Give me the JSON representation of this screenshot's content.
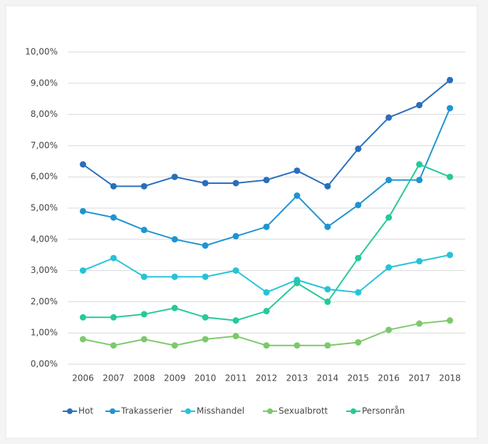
{
  "chart_data": {
    "type": "line",
    "categories": [
      "2006",
      "2007",
      "2008",
      "2009",
      "2010",
      "2011",
      "2012",
      "2013",
      "2014",
      "2015",
      "2016",
      "2017",
      "2018"
    ],
    "series": [
      {
        "name": "Hot",
        "color": "#2a6ebb",
        "values": [
          6.4,
          5.7,
          5.7,
          6.0,
          5.8,
          5.8,
          5.9,
          6.2,
          5.7,
          6.9,
          7.9,
          8.3,
          9.1
        ]
      },
      {
        "name": "Trakasserier",
        "color": "#1e94d2",
        "values": [
          4.9,
          4.7,
          4.3,
          4.0,
          3.8,
          4.1,
          4.4,
          5.4,
          4.4,
          5.1,
          5.9,
          5.9,
          8.2
        ]
      },
      {
        "name": "Misshandel",
        "color": "#25c3d9",
        "values": [
          3.0,
          3.4,
          2.8,
          2.8,
          2.8,
          3.0,
          2.3,
          2.7,
          2.4,
          2.3,
          3.1,
          3.3,
          3.5
        ]
      },
      {
        "name": "Sexualbrott",
        "color": "#7cc96b",
        "values": [
          0.8,
          0.6,
          0.8,
          0.6,
          0.8,
          0.9,
          0.6,
          0.6,
          0.6,
          0.7,
          1.1,
          1.3,
          1.4
        ]
      },
      {
        "name": "Personrån",
        "color": "#25c99b",
        "values": [
          1.5,
          1.5,
          1.6,
          1.8,
          1.5,
          1.4,
          1.7,
          2.6,
          2.0,
          3.4,
          4.7,
          6.4,
          6.0
        ]
      }
    ],
    "ylim": [
      0,
      10
    ],
    "yticks": [
      {
        "value": 0,
        "label": "0,00%"
      },
      {
        "value": 1,
        "label": "1,00%"
      },
      {
        "value": 2,
        "label": "2,00%"
      },
      {
        "value": 3,
        "label": "3,00%"
      },
      {
        "value": 4,
        "label": "4,00%"
      },
      {
        "value": 5,
        "label": "5,00%"
      },
      {
        "value": 6,
        "label": "6,00%"
      },
      {
        "value": 7,
        "label": "7,00%"
      },
      {
        "value": 8,
        "label": "8,00%"
      },
      {
        "value": 9,
        "label": "9,00%"
      },
      {
        "value": 10,
        "label": "10,00%"
      }
    ],
    "grid": true,
    "legend": "bottom"
  }
}
